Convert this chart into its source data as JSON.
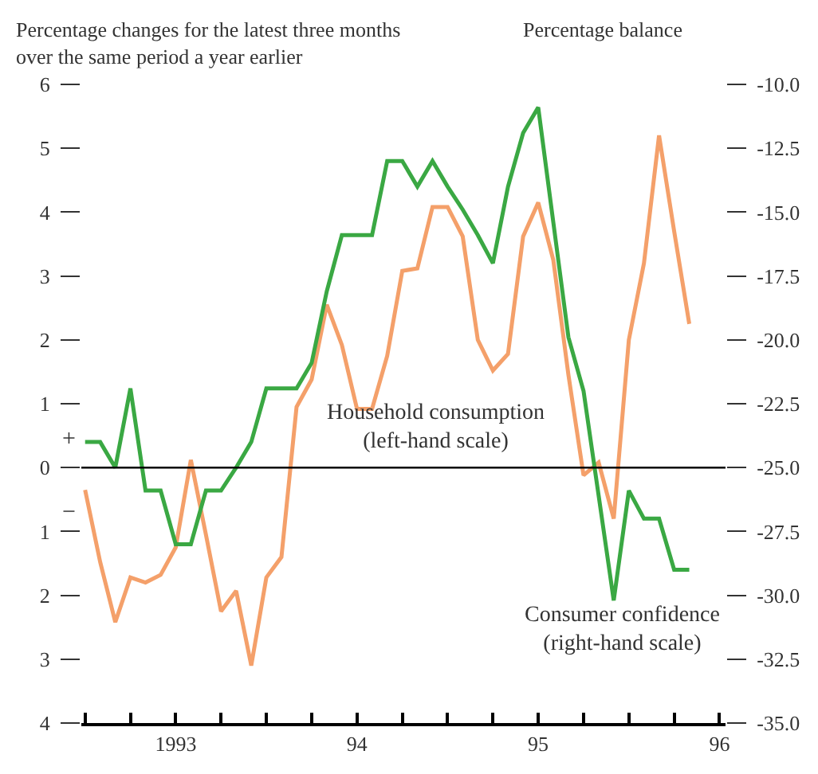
{
  "chart_data": {
    "type": "line",
    "ylabel": "Percentage changes for the latest three months over the same period a year earlier",
    "y2label": "Percentage balance",
    "categories": [
      null,
      null,
      null,
      null,
      null,
      null,
      "1993",
      null,
      null,
      null,
      null,
      null,
      null,
      null,
      null,
      null,
      null,
      null,
      "94",
      null,
      null,
      null,
      null,
      null,
      null,
      null,
      null,
      null,
      null,
      null,
      "95",
      null,
      null,
      null,
      null,
      null,
      null,
      null,
      null,
      null,
      null,
      null,
      "96"
    ],
    "ylim": [
      -4,
      6
    ],
    "yticks": [
      {
        "value": -4,
        "label": "4"
      },
      {
        "value": -3,
        "label": "3"
      },
      {
        "value": -2,
        "label": "2"
      },
      {
        "value": -1,
        "label": "1"
      },
      0,
      1,
      2,
      3,
      4,
      5,
      6
    ],
    "y2lim": [
      -35,
      -10
    ],
    "y2ticks": [
      {
        "value": -35,
        "label": "-35.0"
      },
      {
        "value": -32.5,
        "label": "-32.5"
      },
      {
        "value": -30,
        "label": "-30.0"
      },
      {
        "value": -27.5,
        "label": "-27.5"
      },
      {
        "value": -25,
        "label": "-25.0"
      },
      {
        "value": -22.5,
        "label": "-22.5"
      },
      {
        "value": -20,
        "label": "-20.0"
      },
      {
        "value": -17.5,
        "label": "-17.5"
      },
      {
        "value": -15,
        "label": "-15.0"
      },
      {
        "value": -12.5,
        "label": "-12.5"
      },
      {
        "value": -10,
        "label": "-10.0"
      }
    ],
    "marker": "none",
    "line_style": "solid",
    "ref_lines": [
      {
        "axis": "y",
        "value": 0,
        "color": "#000000"
      }
    ],
    "annotations": [
      "Household consumption (left-hand scale)",
      "Consumer confidence (right-hand scale)",
      "+",
      "−"
    ],
    "series": [
      {
        "color": "#f4a06a",
        "values": [
          -0.35,
          -1.48,
          -2.42,
          -1.72,
          -1.8,
          -1.68,
          -1.25,
          0.12,
          -1.05,
          -2.25,
          -1.93,
          -3.1,
          -1.72,
          -1.4,
          0.95,
          1.38,
          2.55,
          1.92,
          0.92,
          0.92,
          1.75,
          3.08,
          3.12,
          4.08,
          4.08,
          3.62,
          2.0,
          1.52,
          1.78,
          3.62,
          4.15,
          3.25,
          1.45,
          -0.12,
          0.08,
          -0.8,
          2.0,
          3.2,
          5.2,
          3.7,
          2.25,
          null,
          null
        ]
      },
      {
        "color": "#3aa843",
        "axis": "y2",
        "values": [
          -24.0,
          -24.0,
          -25.0,
          -21.9,
          -25.9,
          -25.9,
          -28.0,
          -28.0,
          -25.9,
          -25.9,
          -25.0,
          -24.0,
          -21.9,
          -21.9,
          -21.9,
          -20.9,
          -18.1,
          -15.9,
          -15.9,
          -15.9,
          -13.0,
          -13.0,
          -14.0,
          -13.0,
          -14.0,
          -14.9,
          -15.9,
          -17.0,
          -14.0,
          -11.9,
          -10.9,
          -15.4,
          -19.9,
          -22.0,
          -26.1,
          -30.2,
          -25.9,
          -27.0,
          -27.0,
          -29.0,
          -29.0,
          null,
          null
        ]
      }
    ]
  }
}
